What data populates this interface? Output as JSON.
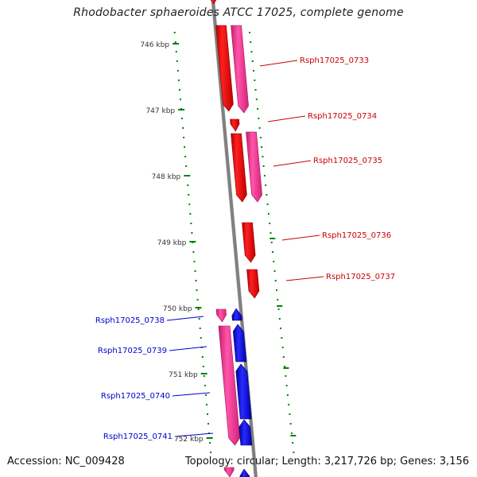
{
  "title": "Rhodobacter sphaeroides ATCC 17025, complete genome",
  "footer": {
    "accession": "Accession: NC_009428",
    "stats": "Topology: circular; Length: 3,217,726 bp; Genes: 3,156"
  },
  "colors": {
    "background": "#ffffff",
    "backbone": "#808080",
    "tick": "#008000",
    "gene_red": "#ff0000",
    "gene_pink": "#ff3399",
    "gene_blue": "#0000ff",
    "label_red": "#cc0000",
    "label_blue": "#0000cc",
    "kbp_label": "#333333"
  },
  "kbp_labels": [
    "746 kbp",
    "747 kbp",
    "748 kbp",
    "749 kbp",
    "750 kbp",
    "751 kbp",
    "752 kbp"
  ],
  "genes": [
    {
      "label": "Rsph17025_0733",
      "color": "label_red"
    },
    {
      "label": "Rsph17025_0734",
      "color": "label_red"
    },
    {
      "label": "Rsph17025_0735",
      "color": "label_red"
    },
    {
      "label": "Rsph17025_0736",
      "color": "label_red"
    },
    {
      "label": "Rsph17025_0737",
      "color": "label_red"
    },
    {
      "label": "Rsph17025_0738",
      "color": "label_blue"
    },
    {
      "label": "Rsph17025_0739",
      "color": "label_blue"
    },
    {
      "label": "Rsph17025_0740",
      "color": "label_blue"
    },
    {
      "label": "Rsph17025_0741",
      "color": "label_blue"
    }
  ]
}
